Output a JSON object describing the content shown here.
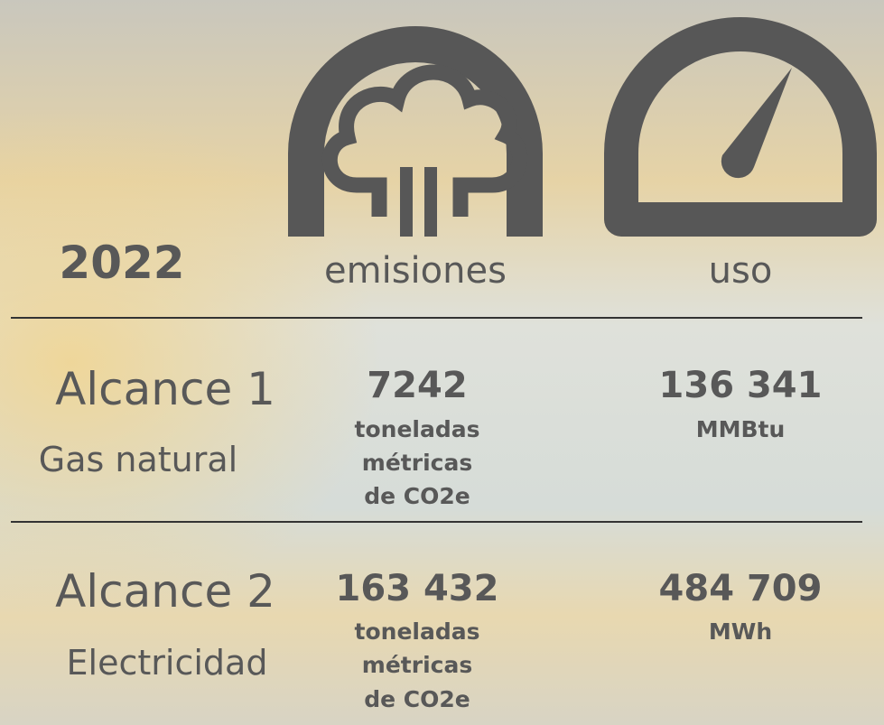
{
  "year": "2022",
  "columns": [
    "emisiones",
    "uso"
  ],
  "rows": [
    {
      "scope": "Alcance 1",
      "source": "Gas natural",
      "emissions": "7242",
      "emissions_unit": [
        "toneladas",
        "métricas",
        "de CO2e"
      ],
      "usage": "136 341",
      "usage_unit": "MMBtu"
    },
    {
      "scope": "Alcance 2",
      "source": "Electricidad",
      "emissions": "163 432",
      "emissions_unit": [
        "toneladas",
        "métricas",
        "de CO2e"
      ],
      "usage": "484 709",
      "usage_unit": "MWh"
    }
  ]
}
